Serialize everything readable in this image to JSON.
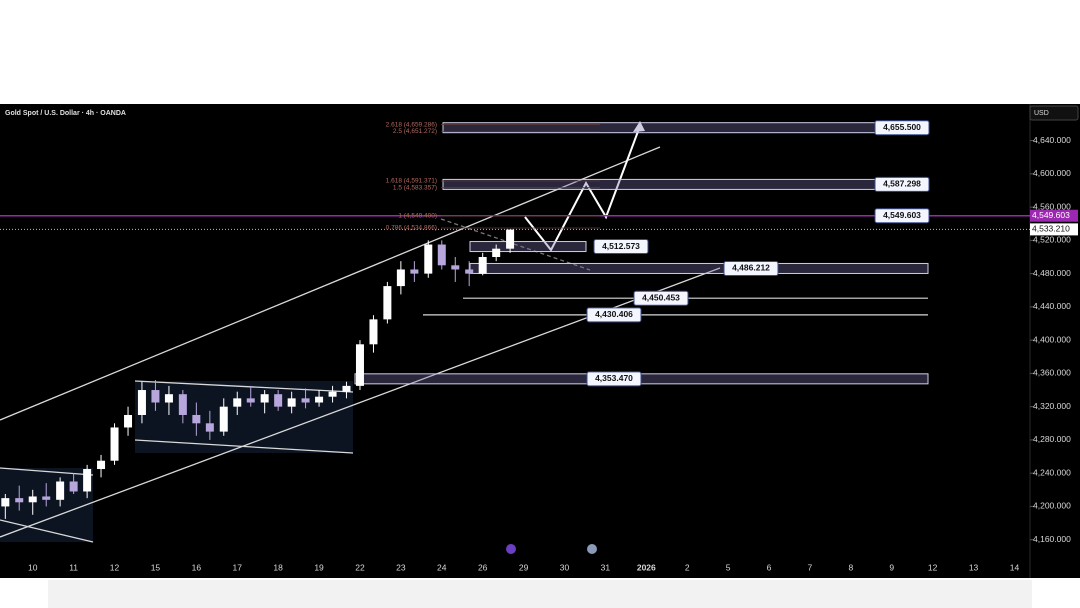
{
  "header": {
    "symbol": "Gold Spot / U.S. Dollar · 4h · OANDA",
    "currency": "USD"
  },
  "chart_data": {
    "type": "candlestick",
    "categories": [
      "10",
      "11",
      "12",
      "15",
      "16",
      "17",
      "18",
      "19",
      "22",
      "23",
      "24",
      "26",
      "29",
      "30",
      "31",
      "2026",
      "2",
      "5",
      "6",
      "7",
      "8",
      "9",
      "12",
      "13",
      "14"
    ],
    "x": [
      -0.67,
      -0.33,
      0,
      0.33,
      0.67,
      1,
      1.33,
      1.67,
      2,
      2.33,
      2.67,
      3,
      3.33,
      3.67,
      4,
      4.33,
      4.67,
      5,
      5.33,
      5.67,
      6,
      6.33,
      6.67,
      7,
      7.33,
      7.67,
      8,
      8.33,
      8.67,
      9,
      9.33,
      9.67,
      10,
      10.33,
      10.67,
      11,
      11.33,
      11.67
    ],
    "open": [
      4200,
      4210,
      4205,
      4212,
      4208,
      4230,
      4218,
      4245,
      4255,
      4295,
      4310,
      4340,
      4325,
      4335,
      4310,
      4300,
      4290,
      4320,
      4330,
      4325,
      4335,
      4320,
      4330,
      4325,
      4332,
      4338,
      4345,
      4395,
      4425,
      4465,
      4485,
      4480,
      4515,
      4490,
      4485,
      4480,
      4500,
      4510
    ],
    "high": [
      4215,
      4225,
      4220,
      4228,
      4235,
      4240,
      4250,
      4262,
      4300,
      4320,
      4350,
      4352,
      4345,
      4340,
      4325,
      4315,
      4330,
      4338,
      4345,
      4340,
      4340,
      4338,
      4342,
      4340,
      4345,
      4350,
      4400,
      4430,
      4470,
      4495,
      4495,
      4520,
      4520,
      4500,
      4495,
      4505,
      4515,
      4533
    ],
    "low": [
      4185,
      4195,
      4190,
      4200,
      4200,
      4215,
      4210,
      4235,
      4250,
      4285,
      4300,
      4315,
      4310,
      4300,
      4285,
      4280,
      4285,
      4310,
      4320,
      4312,
      4315,
      4312,
      4318,
      4320,
      4325,
      4330,
      4340,
      4385,
      4420,
      4455,
      4470,
      4475,
      4485,
      4470,
      4465,
      4478,
      4495,
      4505
    ],
    "close": [
      4210,
      4205,
      4212,
      4208,
      4230,
      4218,
      4245,
      4255,
      4295,
      4310,
      4340,
      4325,
      4335,
      4310,
      4300,
      4290,
      4320,
      4330,
      4325,
      4335,
      4320,
      4330,
      4325,
      4332,
      4338,
      4345,
      4395,
      4425,
      4465,
      4485,
      4480,
      4515,
      4490,
      4485,
      4480,
      4500,
      4510,
      4533
    ],
    "up_color": "#ffffff",
    "down_color": "#b7a6dc",
    "xlim": [
      -0.8,
      24.38
    ],
    "ylim": [
      4138,
      4684
    ],
    "yticks": [
      {
        "value": 4160,
        "label": "4,160.000"
      },
      {
        "value": 4200,
        "label": "4,200.000"
      },
      {
        "value": 4240,
        "label": "4,240.000"
      },
      {
        "value": 4280,
        "label": "4,280.000"
      },
      {
        "value": 4320,
        "label": "4,320.000"
      },
      {
        "value": 4360,
        "label": "4,360.000"
      },
      {
        "value": 4400,
        "label": "4,400.000"
      },
      {
        "value": 4440,
        "label": "4,440.000"
      },
      {
        "value": 4480,
        "label": "4,480.000"
      },
      {
        "value": 4520,
        "label": "4,520.000"
      },
      {
        "value": 4560,
        "label": "4,560.000"
      },
      {
        "value": 4600,
        "label": "4,600.000"
      },
      {
        "value": 4640,
        "label": "4,640.000"
      }
    ],
    "levels": [
      {
        "value": 4655.5,
        "label": "4,655.500"
      },
      {
        "value": 4587.298,
        "label": "4,587.298"
      },
      {
        "value": 4549.603,
        "label": "4,549.603"
      },
      {
        "value": 4512.573,
        "label": "4,512.573"
      },
      {
        "value": 4486.212,
        "label": "4,486.212"
      },
      {
        "value": 4450.453,
        "label": "4,450.453"
      },
      {
        "value": 4430.406,
        "label": "4,430.406"
      },
      {
        "value": 4353.47,
        "label": "4,353.470"
      }
    ],
    "last_price": {
      "value": 4533.21,
      "label": "4,533.210"
    },
    "fib_labels": [
      {
        "value": 4659.286,
        "label": "2.618 (4,659.286)"
      },
      {
        "value": 4651.272,
        "label": "2.5 (4,651.272)"
      },
      {
        "value": 4591.371,
        "label": "1.618 (4,591.371)"
      },
      {
        "value": 4583.357,
        "label": "1.5 (4,583.357)"
      },
      {
        "value": 4549.4,
        "label": "1 (4,549.400)"
      },
      {
        "value": 4534.866,
        "label": "0.786 (4,534.866)"
      }
    ]
  }
}
